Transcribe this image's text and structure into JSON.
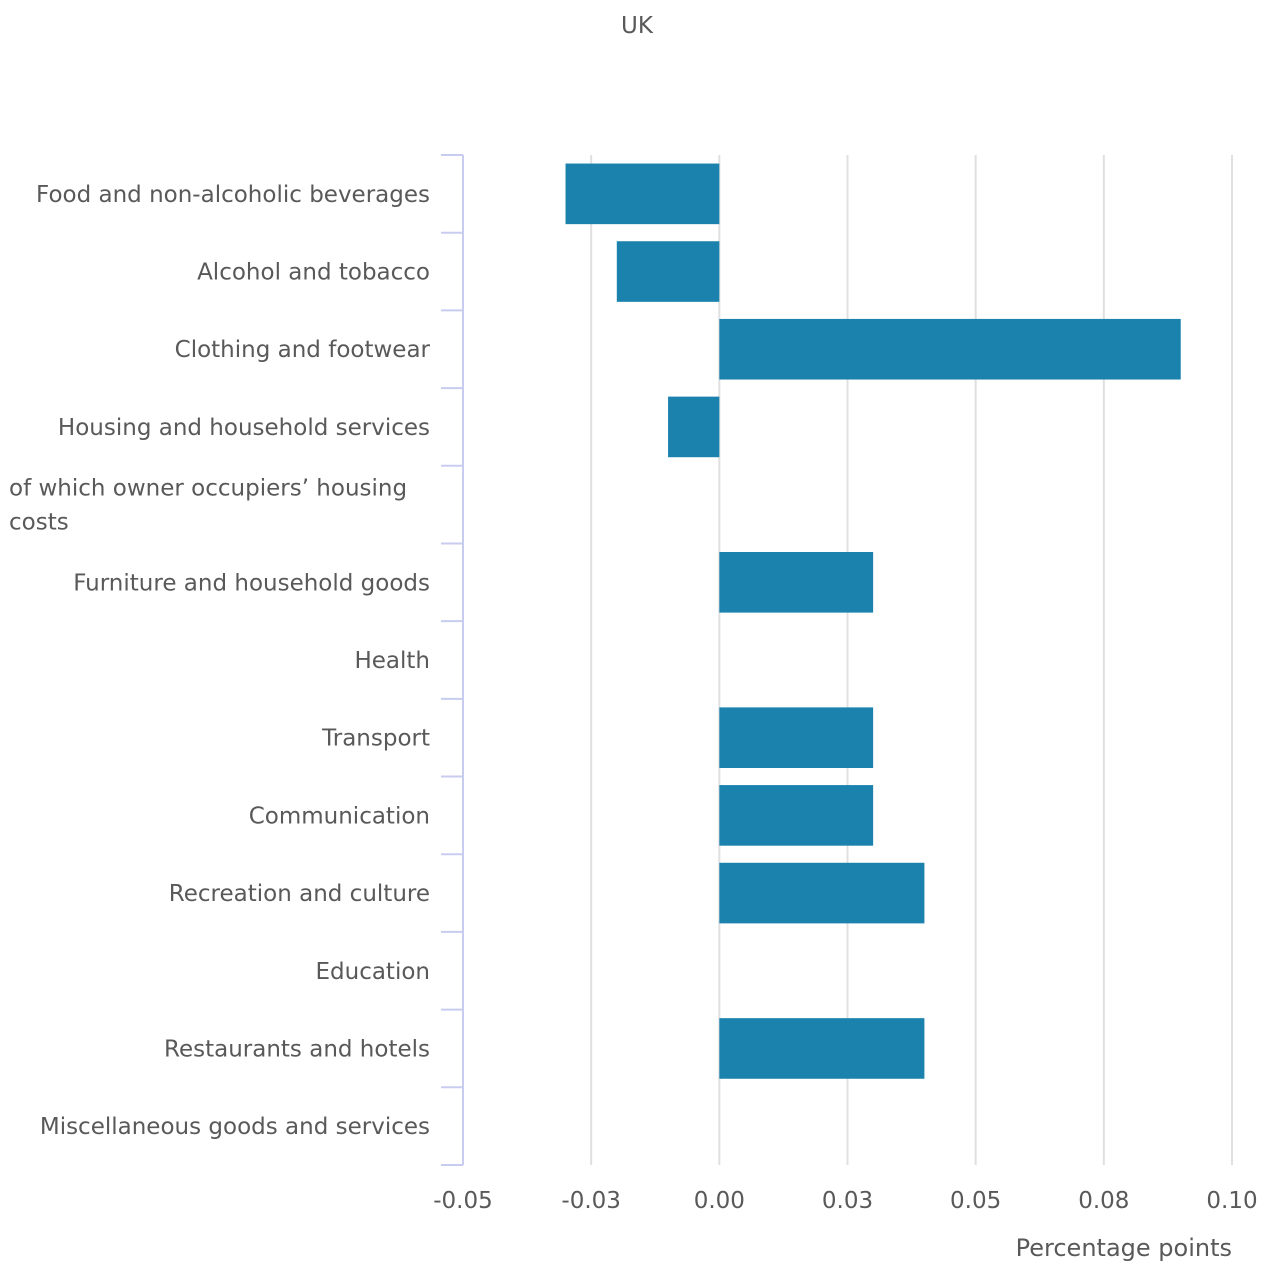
{
  "chart_data": {
    "type": "bar",
    "orientation": "horizontal",
    "title": "UK",
    "xlabel": "Percentage points",
    "ylabel": "",
    "xlim": [
      -0.05,
      0.1
    ],
    "xticks": [
      -0.05,
      -0.025,
      0,
      0.025,
      0.05,
      0.075,
      0.1
    ],
    "xtick_labels": [
      "-0.05",
      "-0.03",
      "0.00",
      "0.03",
      "0.05",
      "0.08",
      "0.10"
    ],
    "grid": true,
    "legend": "none",
    "categories": [
      [
        "Food and non-alcoholic beverages"
      ],
      [
        "Alcohol and tobacco"
      ],
      [
        "Clothing and footwear"
      ],
      [
        "Housing and household services"
      ],
      [
        "of which owner occupiers’ housing",
        "costs"
      ],
      [
        "Furniture and household goods"
      ],
      [
        "Health"
      ],
      [
        "Transport"
      ],
      [
        "Communication"
      ],
      [
        "Recreation and culture"
      ],
      [
        "Education"
      ],
      [
        "Restaurants and hotels"
      ],
      [
        "Miscellaneous goods and services"
      ]
    ],
    "values": [
      -0.03,
      -0.02,
      0.09,
      -0.01,
      0,
      0.03,
      0,
      0.03,
      0.03,
      0.04,
      0,
      0.04,
      0
    ],
    "bar_color": "#1a82ad",
    "grid_color": "#e0e0e0",
    "axis_color": "#c8cdf0",
    "text_color": "#595959"
  }
}
